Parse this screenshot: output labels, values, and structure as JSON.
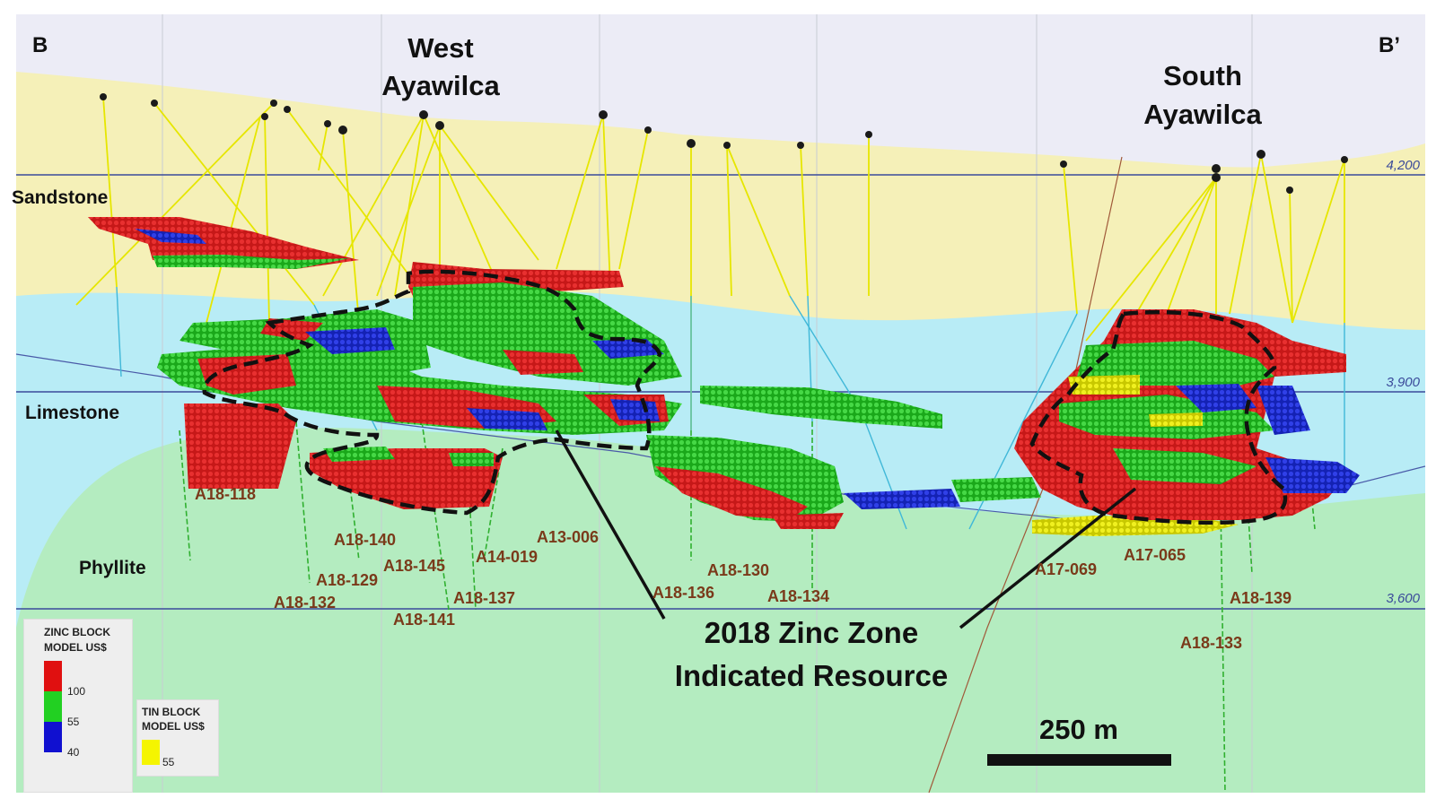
{
  "corners": {
    "left": "B",
    "right": "B’"
  },
  "zones": {
    "west": [
      "West",
      "Ayawilca"
    ],
    "south": [
      "South",
      "Ayawilca"
    ]
  },
  "units": [
    "Sandstone",
    "Limestone",
    "Phyllite"
  ],
  "elevations": [
    "4,200",
    "3,900",
    "3,600"
  ],
  "drillholes": [
    "A18-118",
    "A18-140",
    "A18-145",
    "A14-019",
    "A13-006",
    "A18-129",
    "A18-132",
    "A18-137",
    "A18-141",
    "A18-136",
    "A18-130",
    "A18-134",
    "A17-069",
    "A17-065",
    "A18-139",
    "A18-133"
  ],
  "annotation": [
    "2018 Zinc Zone",
    "Indicated Resource"
  ],
  "scale_bar": {
    "label": "250 m"
  },
  "legend_zinc": {
    "title": [
      "ZINC BLOCK",
      "MODEL US$"
    ],
    "ticks": [
      "100",
      "55",
      "40"
    ],
    "colors": [
      "#e01010",
      "#22d022",
      "#1010d0"
    ]
  },
  "legend_tin": {
    "title": [
      "TIN BLOCK",
      "MODEL US$"
    ],
    "ticks": [
      "55"
    ],
    "colors": [
      "#f5f500"
    ]
  },
  "colors": {
    "sky": "#ececf6",
    "sandstone": "#f5f0b8",
    "limestone": "#b8ecf6",
    "phyllite": "#b4ecc0",
    "elev_line": "#3a4a9a",
    "drill": "#e6e600",
    "red": "#d41a1a",
    "green": "#22c022",
    "blue": "#1a2ad0",
    "label_brown": "#7a3a1a"
  }
}
